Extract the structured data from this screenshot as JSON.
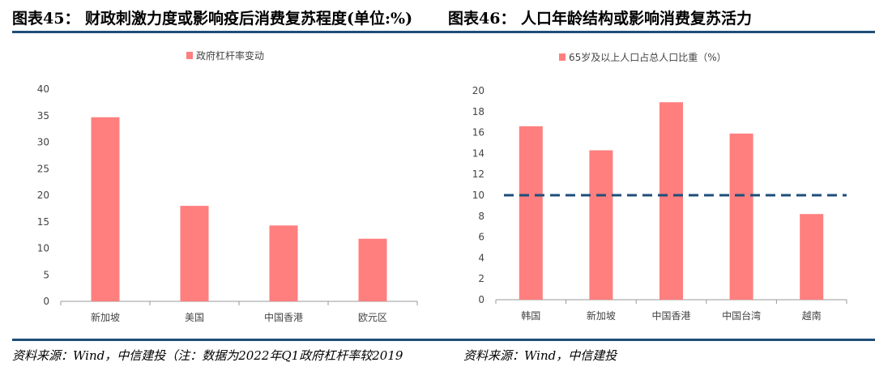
{
  "titles": {
    "left": "图表45：  财政刺激力度或影响疫后消费复苏程度(单位:%)",
    "right": "图表46：  人口年龄结构或影响消费复苏活力"
  },
  "sources": {
    "left": "资料来源：Wind，中信建投（注：数据为2022年Q1政府杠杆率较2019",
    "right": "资料来源：Wind，中信建投"
  },
  "colors": {
    "bar": "#ff7f7f",
    "ref_line": "#1f4e79"
  },
  "chart_data": [
    {
      "type": "bar",
      "legend": "政府杠杆率变动",
      "legend_position": "top",
      "categories": [
        "新加坡",
        "美国",
        "中国香港",
        "欧元区"
      ],
      "values": [
        34.7,
        18.0,
        14.3,
        11.8
      ],
      "ylim": [
        0,
        40
      ],
      "yticks": [
        0,
        5,
        10,
        15,
        20,
        25,
        30,
        35,
        40
      ]
    },
    {
      "type": "bar",
      "legend": "65岁及以上人口占总人口比重（%）",
      "legend_position": "top",
      "categories": [
        "韩国",
        "新加坡",
        "中国香港",
        "中国台湾",
        "越南"
      ],
      "values": [
        16.6,
        14.3,
        18.9,
        15.9,
        8.2
      ],
      "reference_line": 10,
      "ylim": [
        0,
        20
      ],
      "yticks": [
        0,
        2,
        4,
        6,
        8,
        10,
        12,
        14,
        16,
        18,
        20
      ]
    }
  ]
}
